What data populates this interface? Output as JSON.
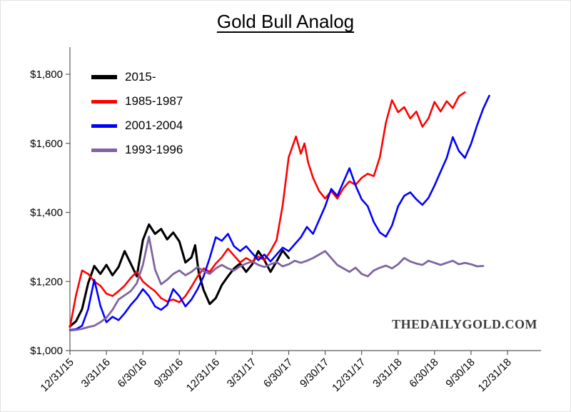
{
  "title": "Gold Bull Analog",
  "watermark": "THEDAILYGOLD.COM",
  "chart_data": {
    "type": "line",
    "title": "Gold Bull Analog",
    "xlabel": "",
    "ylabel": "",
    "grid": false,
    "legend_position": "top-left inside plot",
    "x_unit": "months since analog start (0 = 12/31/15 equivalent)",
    "xlim": [
      0,
      37.5
    ],
    "ylim": [
      1000,
      1870
    ],
    "y_ticks": [
      1000,
      1200,
      1400,
      1600,
      1800
    ],
    "y_tick_labels": [
      "$1,000",
      "$1,200",
      "$1,400",
      "$1,600",
      "$1,800"
    ],
    "x_ticks": [
      0,
      3,
      6,
      9,
      12,
      15,
      18,
      21,
      24,
      27,
      30,
      33,
      36
    ],
    "x_tick_labels": [
      "12/31/15",
      "3/31/16",
      "6/30/16",
      "9/30/16",
      "12/31/16",
      "3/31/17",
      "6/30/17",
      "9/30/17",
      "12/31/17",
      "3/31/18",
      "6/30/18",
      "9/30/18",
      "12/31/18"
    ],
    "series": [
      {
        "name": "2015-",
        "color": "#000000",
        "line_width": 3.1,
        "points": [
          [
            0,
            1070
          ],
          [
            0.5,
            1085
          ],
          [
            1,
            1120
          ],
          [
            1.5,
            1195
          ],
          [
            2,
            1245
          ],
          [
            2.5,
            1222
          ],
          [
            3,
            1248
          ],
          [
            3.5,
            1218
          ],
          [
            4,
            1242
          ],
          [
            4.5,
            1288
          ],
          [
            5,
            1252
          ],
          [
            5.5,
            1215
          ],
          [
            6,
            1320
          ],
          [
            6.5,
            1365
          ],
          [
            7,
            1338
          ],
          [
            7.5,
            1352
          ],
          [
            8,
            1322
          ],
          [
            8.5,
            1342
          ],
          [
            9,
            1316
          ],
          [
            9.5,
            1255
          ],
          [
            10,
            1270
          ],
          [
            10.3,
            1305
          ],
          [
            10.6,
            1225
          ],
          [
            11,
            1175
          ],
          [
            11.5,
            1135
          ],
          [
            12,
            1152
          ],
          [
            12.5,
            1190
          ],
          [
            13,
            1215
          ],
          [
            13.5,
            1238
          ],
          [
            14,
            1252
          ],
          [
            14.5,
            1228
          ],
          [
            15,
            1250
          ],
          [
            15.5,
            1288
          ],
          [
            16,
            1262
          ],
          [
            16.5,
            1228
          ],
          [
            17,
            1258
          ],
          [
            17.5,
            1290
          ],
          [
            18,
            1268
          ]
        ]
      },
      {
        "name": "1985-1987",
        "color": "#FF0000",
        "line_width": 2.6,
        "points": [
          [
            0,
            1068
          ],
          [
            0.5,
            1160
          ],
          [
            1,
            1232
          ],
          [
            1.5,
            1222
          ],
          [
            2,
            1200
          ],
          [
            2.5,
            1188
          ],
          [
            3,
            1165
          ],
          [
            3.5,
            1158
          ],
          [
            4,
            1172
          ],
          [
            4.5,
            1188
          ],
          [
            5,
            1210
          ],
          [
            5.5,
            1228
          ],
          [
            6,
            1200
          ],
          [
            6.5,
            1185
          ],
          [
            7,
            1172
          ],
          [
            7.5,
            1152
          ],
          [
            8,
            1142
          ],
          [
            8.5,
            1148
          ],
          [
            9,
            1140
          ],
          [
            9.5,
            1158
          ],
          [
            10,
            1185
          ],
          [
            10.5,
            1215
          ],
          [
            11,
            1238
          ],
          [
            11.5,
            1228
          ],
          [
            12,
            1252
          ],
          [
            12.5,
            1270
          ],
          [
            13,
            1295
          ],
          [
            13.5,
            1275
          ],
          [
            14,
            1255
          ],
          [
            14.5,
            1268
          ],
          [
            15,
            1258
          ],
          [
            15.5,
            1272
          ],
          [
            16,
            1262
          ],
          [
            16.5,
            1288
          ],
          [
            17,
            1320
          ],
          [
            17.5,
            1420
          ],
          [
            18,
            1560
          ],
          [
            18.3,
            1590
          ],
          [
            18.6,
            1620
          ],
          [
            19,
            1570
          ],
          [
            19.3,
            1600
          ],
          [
            19.6,
            1545
          ],
          [
            20,
            1500
          ],
          [
            20.5,
            1462
          ],
          [
            21,
            1440
          ],
          [
            21.5,
            1462
          ],
          [
            22,
            1440
          ],
          [
            22.5,
            1470
          ],
          [
            23,
            1490
          ],
          [
            23.5,
            1480
          ],
          [
            24,
            1500
          ],
          [
            24.5,
            1512
          ],
          [
            25,
            1505
          ],
          [
            25.5,
            1560
          ],
          [
            26,
            1660
          ],
          [
            26.5,
            1725
          ],
          [
            27,
            1690
          ],
          [
            27.5,
            1705
          ],
          [
            28,
            1672
          ],
          [
            28.5,
            1692
          ],
          [
            29,
            1648
          ],
          [
            29.5,
            1672
          ],
          [
            30,
            1720
          ],
          [
            30.5,
            1692
          ],
          [
            31,
            1722
          ],
          [
            31.5,
            1702
          ],
          [
            32,
            1736
          ],
          [
            32.5,
            1748
          ]
        ]
      },
      {
        "name": "2001-2004",
        "color": "#0000FF",
        "line_width": 2.6,
        "points": [
          [
            0,
            1060
          ],
          [
            0.5,
            1062
          ],
          [
            1,
            1072
          ],
          [
            1.5,
            1120
          ],
          [
            2,
            1205
          ],
          [
            2.5,
            1130
          ],
          [
            3,
            1082
          ],
          [
            3.5,
            1098
          ],
          [
            4,
            1088
          ],
          [
            4.5,
            1108
          ],
          [
            5,
            1132
          ],
          [
            5.5,
            1152
          ],
          [
            6,
            1178
          ],
          [
            6.5,
            1158
          ],
          [
            7,
            1128
          ],
          [
            7.5,
            1118
          ],
          [
            8,
            1132
          ],
          [
            8.5,
            1178
          ],
          [
            9,
            1158
          ],
          [
            9.5,
            1128
          ],
          [
            10,
            1148
          ],
          [
            10.5,
            1178
          ],
          [
            11,
            1215
          ],
          [
            11.5,
            1268
          ],
          [
            12,
            1328
          ],
          [
            12.5,
            1318
          ],
          [
            13,
            1338
          ],
          [
            13.5,
            1302
          ],
          [
            14,
            1288
          ],
          [
            14.5,
            1302
          ],
          [
            15,
            1282
          ],
          [
            15.5,
            1262
          ],
          [
            16,
            1278
          ],
          [
            16.5,
            1258
          ],
          [
            17,
            1278
          ],
          [
            17.5,
            1298
          ],
          [
            18,
            1288
          ],
          [
            18.5,
            1308
          ],
          [
            19,
            1328
          ],
          [
            19.5,
            1358
          ],
          [
            20,
            1338
          ],
          [
            20.5,
            1378
          ],
          [
            21,
            1418
          ],
          [
            21.5,
            1468
          ],
          [
            22,
            1448
          ],
          [
            22.5,
            1488
          ],
          [
            23,
            1528
          ],
          [
            23.5,
            1478
          ],
          [
            24,
            1438
          ],
          [
            24.5,
            1418
          ],
          [
            25,
            1372
          ],
          [
            25.5,
            1342
          ],
          [
            26,
            1330
          ],
          [
            26.5,
            1362
          ],
          [
            27,
            1418
          ],
          [
            27.5,
            1448
          ],
          [
            28,
            1458
          ],
          [
            28.5,
            1438
          ],
          [
            29,
            1422
          ],
          [
            29.5,
            1442
          ],
          [
            30,
            1478
          ],
          [
            30.5,
            1518
          ],
          [
            31,
            1558
          ],
          [
            31.5,
            1618
          ],
          [
            32,
            1578
          ],
          [
            32.5,
            1558
          ],
          [
            33,
            1598
          ],
          [
            33.5,
            1652
          ],
          [
            34,
            1700
          ],
          [
            34.5,
            1738
          ]
        ]
      },
      {
        "name": "1993-1996",
        "color": "#8064A2",
        "line_width": 2.8,
        "points": [
          [
            0,
            1058
          ],
          [
            0.5,
            1060
          ],
          [
            1,
            1063
          ],
          [
            1.5,
            1068
          ],
          [
            2,
            1072
          ],
          [
            2.5,
            1082
          ],
          [
            3,
            1095
          ],
          [
            3.5,
            1118
          ],
          [
            4,
            1148
          ],
          [
            4.5,
            1160
          ],
          [
            5,
            1172
          ],
          [
            5.5,
            1195
          ],
          [
            6,
            1248
          ],
          [
            6.5,
            1330
          ],
          [
            7,
            1235
          ],
          [
            7.5,
            1192
          ],
          [
            8,
            1205
          ],
          [
            8.5,
            1222
          ],
          [
            9,
            1232
          ],
          [
            9.5,
            1218
          ],
          [
            10,
            1228
          ],
          [
            10.5,
            1242
          ],
          [
            11,
            1230
          ],
          [
            11.5,
            1222
          ],
          [
            12,
            1238
          ],
          [
            12.5,
            1248
          ],
          [
            13,
            1238
          ],
          [
            13.5,
            1232
          ],
          [
            14,
            1244
          ],
          [
            14.5,
            1252
          ],
          [
            15,
            1258
          ],
          [
            15.5,
            1248
          ],
          [
            16,
            1242
          ],
          [
            16.5,
            1250
          ],
          [
            17,
            1256
          ],
          [
            17.5,
            1244
          ],
          [
            18,
            1250
          ],
          [
            18.5,
            1260
          ],
          [
            19,
            1254
          ],
          [
            19.5,
            1260
          ],
          [
            20,
            1268
          ],
          [
            20.5,
            1278
          ],
          [
            21,
            1288
          ],
          [
            21.5,
            1268
          ],
          [
            22,
            1248
          ],
          [
            22.5,
            1238
          ],
          [
            23,
            1228
          ],
          [
            23.5,
            1240
          ],
          [
            24,
            1222
          ],
          [
            24.5,
            1215
          ],
          [
            25,
            1232
          ],
          [
            25.5,
            1240
          ],
          [
            26,
            1246
          ],
          [
            26.5,
            1238
          ],
          [
            27,
            1250
          ],
          [
            27.5,
            1268
          ],
          [
            28,
            1258
          ],
          [
            28.5,
            1252
          ],
          [
            29,
            1248
          ],
          [
            29.5,
            1260
          ],
          [
            30,
            1254
          ],
          [
            30.5,
            1248
          ],
          [
            31,
            1254
          ],
          [
            31.5,
            1260
          ],
          [
            32,
            1250
          ],
          [
            32.5,
            1254
          ],
          [
            33,
            1250
          ],
          [
            33.5,
            1244
          ],
          [
            34,
            1245
          ]
        ]
      }
    ]
  }
}
